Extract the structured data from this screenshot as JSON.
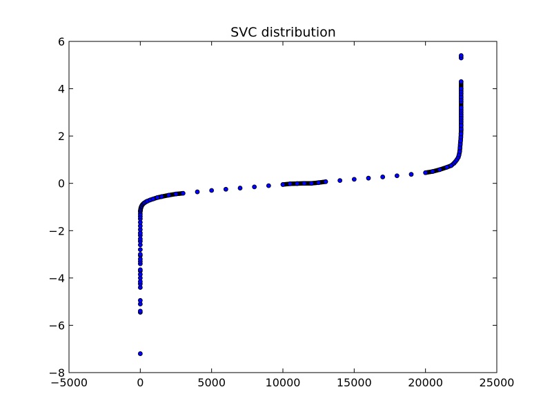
{
  "chart_data": {
    "type": "scatter",
    "title": "SVC distribution",
    "xlabel": "",
    "ylabel": "",
    "xlim": [
      -5000,
      25000
    ],
    "ylim": [
      -8,
      6
    ],
    "x_ticks": [
      -5000,
      0,
      5000,
      10000,
      15000,
      20000,
      25000
    ],
    "x_tick_labels": [
      "−5000",
      "0",
      "5000",
      "10000",
      "15000",
      "20000",
      "25000"
    ],
    "y_ticks": [
      -8,
      -6,
      -4,
      -2,
      0,
      2,
      4,
      6
    ],
    "y_tick_labels": [
      "−8",
      "−6",
      "−4",
      "−2",
      "0",
      "2",
      "4",
      "6"
    ],
    "grid": false,
    "legend": "none",
    "marker_fill": "#0000ff",
    "marker_edge": "#000000",
    "series": [
      {
        "x": [
          0,
          0,
          0,
          0,
          0,
          0,
          0,
          0,
          0,
          0,
          0,
          0,
          0,
          0,
          0,
          0,
          0,
          0,
          0,
          0,
          0,
          0,
          0,
          0,
          0,
          0,
          0,
          0,
          0,
          0,
          10,
          20,
          40,
          60,
          80,
          100,
          150,
          200,
          250,
          300,
          400,
          500,
          700,
          900,
          1200,
          1500,
          2000,
          2500,
          3000,
          4000,
          5000,
          6000,
          7000,
          8000,
          9000,
          10000,
          10500,
          11000,
          11500,
          12000,
          12500,
          13000,
          14000,
          15000,
          16000,
          17000,
          18000,
          19000,
          20000,
          20500,
          21000,
          21500,
          21800,
          22000,
          22100,
          22200,
          22300,
          22350,
          22400,
          22420,
          22440,
          22460,
          22480,
          22490,
          22500,
          22500,
          22500,
          22500,
          22500,
          22500,
          22500,
          22500,
          22500,
          22500,
          22500,
          22500,
          22500,
          22500,
          22500,
          22500,
          22500,
          22500,
          22500
        ],
        "y": [
          -7.2,
          -5.45,
          -5.4,
          -5.1,
          -4.95,
          -4.4,
          -4.25,
          -4.15,
          -4.0,
          -3.85,
          -3.7,
          -3.65,
          -3.4,
          -3.3,
          -3.2,
          -3.05,
          -3.0,
          -2.8,
          -2.6,
          -2.45,
          -2.35,
          -2.2,
          -2.1,
          -1.95,
          -1.8,
          -1.65,
          -1.5,
          -1.4,
          -1.3,
          -1.2,
          -1.15,
          -1.1,
          -1.05,
          -1.0,
          -0.98,
          -0.95,
          -0.9,
          -0.87,
          -0.84,
          -0.82,
          -0.78,
          -0.75,
          -0.7,
          -0.66,
          -0.6,
          -0.56,
          -0.5,
          -0.45,
          -0.42,
          -0.36,
          -0.3,
          -0.25,
          -0.2,
          -0.15,
          -0.1,
          -0.05,
          -0.02,
          -0.01,
          0.0,
          0.0,
          0.03,
          0.07,
          0.12,
          0.17,
          0.22,
          0.27,
          0.32,
          0.38,
          0.45,
          0.5,
          0.58,
          0.68,
          0.75,
          0.85,
          0.92,
          1.0,
          1.1,
          1.2,
          1.35,
          1.5,
          1.65,
          1.8,
          1.95,
          2.1,
          2.25,
          2.3,
          2.45,
          2.6,
          2.7,
          2.8,
          2.9,
          3.0,
          3.1,
          3.2,
          3.45,
          3.55,
          3.65,
          3.8,
          3.9,
          4.0,
          4.3,
          5.3,
          5.4
        ]
      }
    ]
  }
}
